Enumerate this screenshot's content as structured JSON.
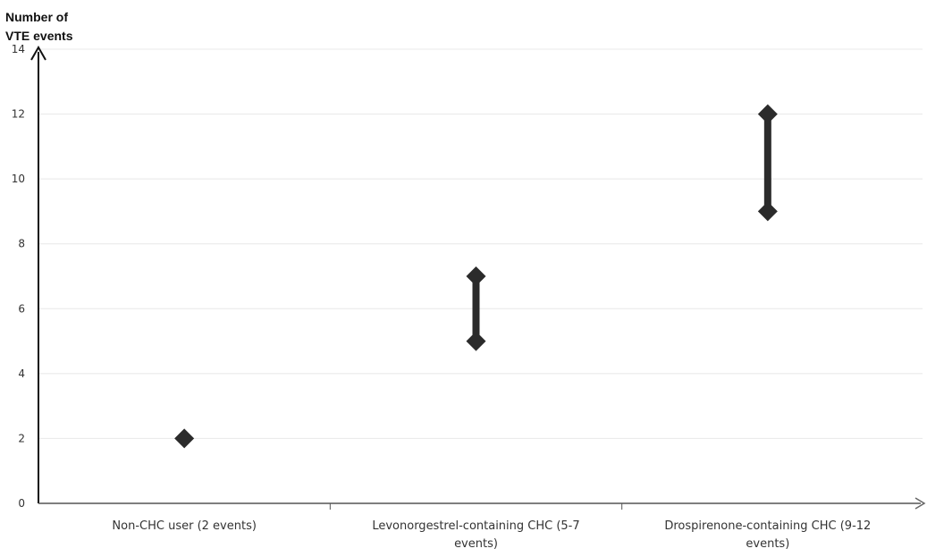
{
  "chart_data": {
    "type": "range",
    "ylabel": "Number of VTE events",
    "ylim": [
      0,
      14
    ],
    "yticks": [
      0,
      2,
      4,
      6,
      8,
      10,
      12,
      14
    ],
    "categories": [
      [
        "Non-CHC user (2 events)"
      ],
      [
        "Levonorgestrel-containing CHC (5-7",
        "events)"
      ],
      [
        "Drospirenone-containing CHC (9-12",
        "events)"
      ]
    ],
    "ranges": [
      {
        "low": 2,
        "high": 2
      },
      {
        "low": 5,
        "high": 7
      },
      {
        "low": 9,
        "high": 12
      }
    ],
    "grid": true,
    "colors": {
      "marker": "#2b2b2b",
      "grid": "#e8e8e8",
      "axis": "#111111",
      "text": "#333333"
    }
  }
}
